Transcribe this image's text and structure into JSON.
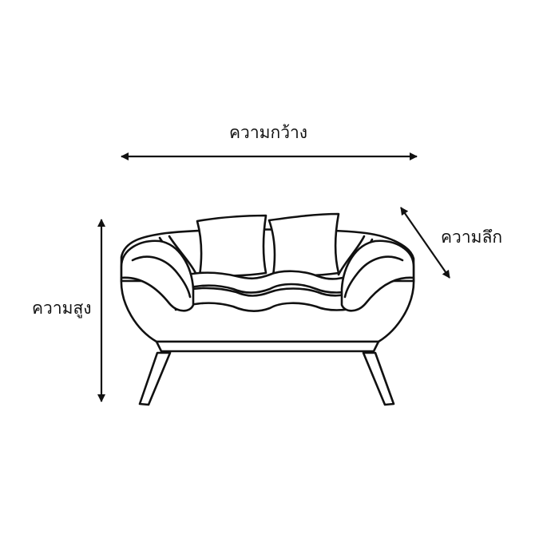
{
  "diagram": {
    "subject": "sofa-outline",
    "labels": {
      "width": "ความกว้าง",
      "depth": "ความลึก",
      "height": "ความสูง"
    },
    "colors": {
      "stroke": "#111111",
      "background": "#ffffff"
    }
  }
}
